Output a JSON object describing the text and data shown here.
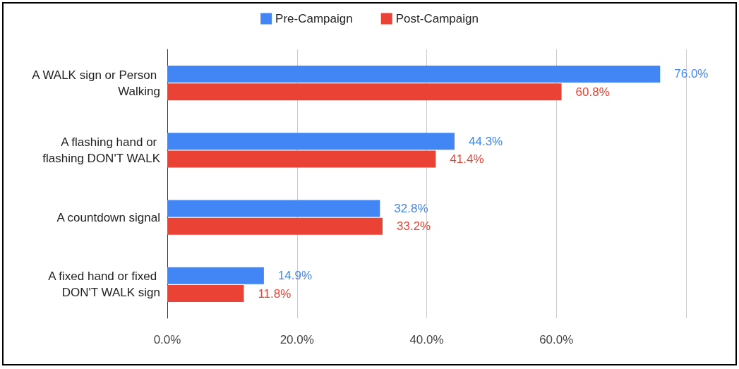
{
  "chart_data": {
    "type": "bar",
    "orientation": "horizontal",
    "categories": [
      "A WALK sign or Person Walking",
      "A flashing hand or flashing DON'T WALK",
      "A countdown signal",
      "A fixed hand or fixed DON'T WALK sign"
    ],
    "series": [
      {
        "name": "Pre-Campaign",
        "color": "#4285f4",
        "values": [
          76.0,
          44.3,
          32.8,
          14.9
        ],
        "value_labels": [
          "76.0%",
          "44.3%",
          "32.8%",
          "14.9%"
        ]
      },
      {
        "name": "Post-Campaign",
        "color": "#ea4335",
        "values": [
          60.8,
          41.4,
          33.2,
          11.8
        ],
        "value_labels": [
          "60.8%",
          "41.4%",
          "33.2%",
          "11.8%"
        ]
      }
    ],
    "xlim": [
      0,
      80
    ],
    "xticks": [
      {
        "value": 0,
        "label": "0.0%"
      },
      {
        "value": 20,
        "label": "20.0%"
      },
      {
        "value": 40,
        "label": "40.0%"
      },
      {
        "value": 60,
        "label": "60.0%"
      },
      {
        "value": 80,
        "label": null
      }
    ],
    "grid": "x",
    "legend": "top"
  }
}
